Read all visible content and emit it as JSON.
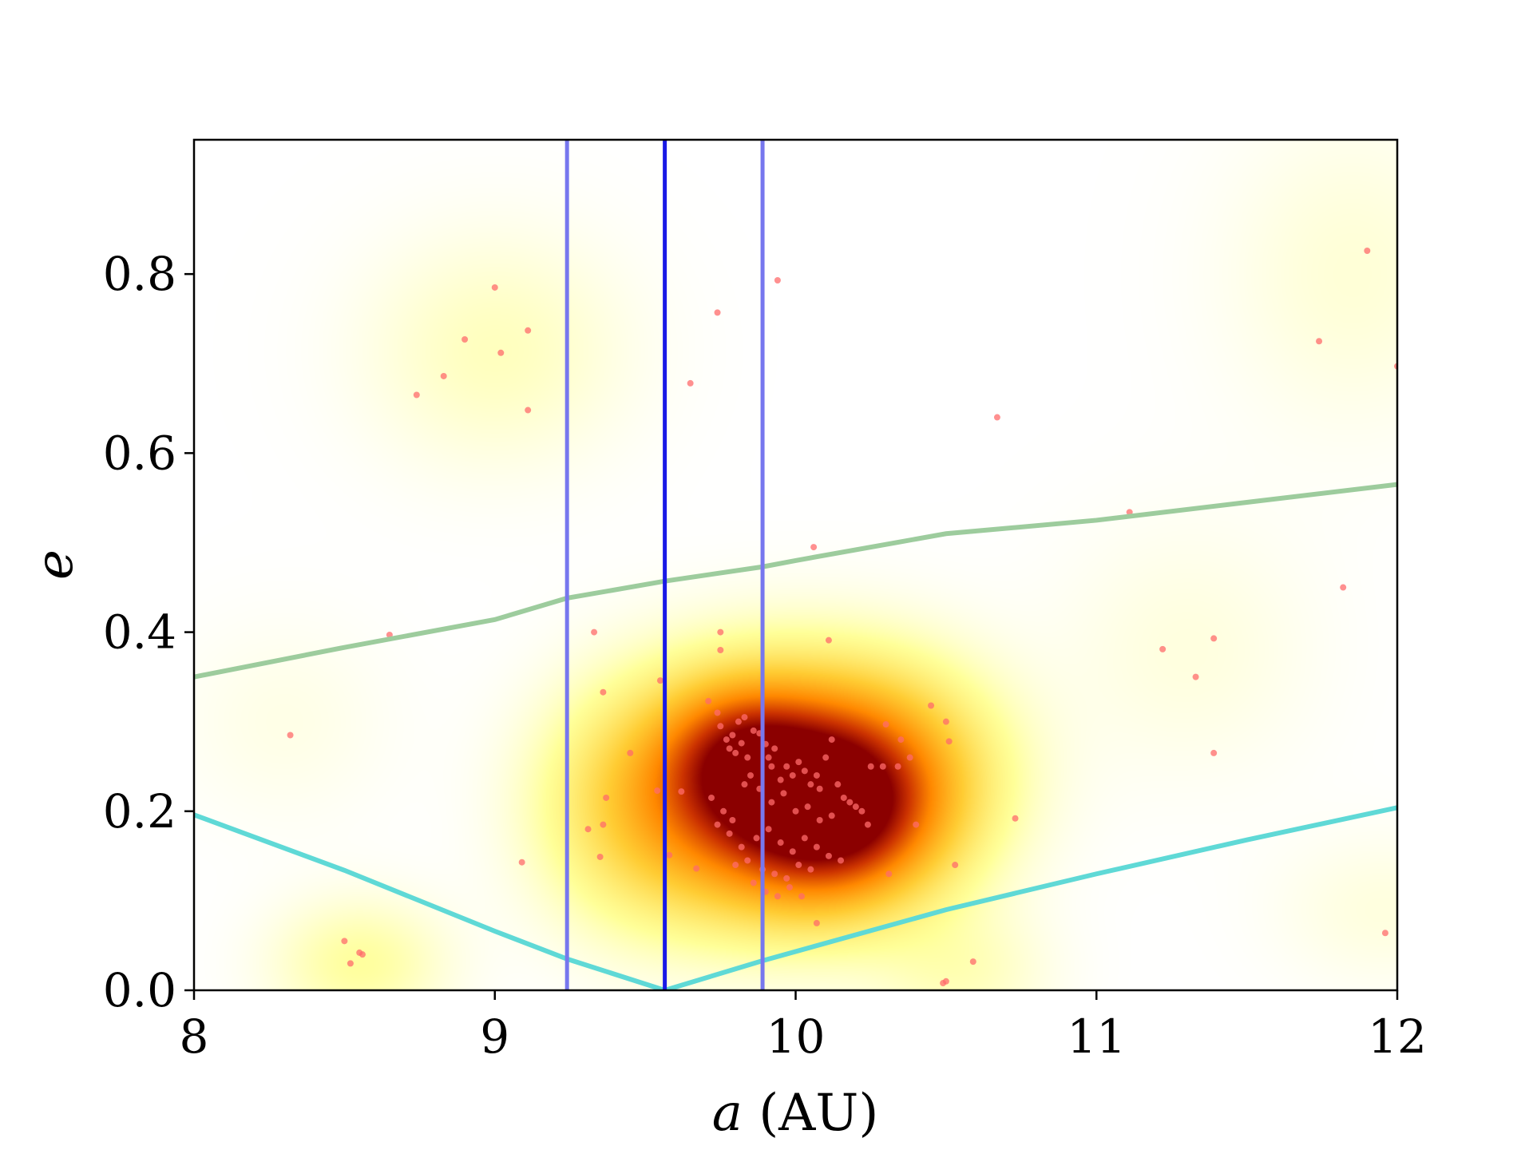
{
  "chart_data": {
    "type": "scatter",
    "xlabel_var": "a",
    "xlabel_unit": "(AU)",
    "ylabel": "e",
    "xlim": [
      8,
      12
    ],
    "ylim": [
      0,
      0.95
    ],
    "xticks": [
      8,
      9,
      10,
      11,
      12
    ],
    "xtick_labels": [
      "8",
      "9",
      "10",
      "11",
      "12"
    ],
    "yticks": [
      0.0,
      0.2,
      0.4,
      0.6,
      0.8
    ],
    "ytick_labels": [
      "0.0",
      "0.2",
      "0.4",
      "0.6",
      "0.8"
    ],
    "grid": false,
    "density_colormap": [
      "#ffffff",
      "#ffff99",
      "#ffcc33",
      "#ff8800",
      "#cc3300",
      "#8b0000"
    ],
    "vertical_lines": [
      {
        "x": 9.24,
        "color": "#7777ee",
        "role": "edge"
      },
      {
        "x": 9.565,
        "color": "#1a1ae6",
        "role": "center"
      },
      {
        "x": 9.89,
        "color": "#7777ee",
        "role": "edge"
      }
    ],
    "curves": [
      {
        "color": "#9dcc9d",
        "x": [
          8.0,
          8.5,
          9.0,
          9.24,
          9.565,
          9.89,
          10.0,
          10.5,
          11.0,
          11.5,
          12.0
        ],
        "y": [
          0.35,
          0.383,
          0.414,
          0.438,
          0.457,
          0.473,
          0.48,
          0.51,
          0.525,
          0.545,
          0.565
        ]
      },
      {
        "color": "#5fd9d6",
        "x": [
          8.0,
          8.5,
          9.0,
          9.24,
          9.565
        ],
        "y": [
          0.196,
          0.134,
          0.066,
          0.035,
          0.0
        ]
      },
      {
        "color": "#5fd9d6",
        "x": [
          9.565,
          9.89,
          10.5,
          11.0,
          11.5,
          12.0
        ],
        "y": [
          0.0,
          0.033,
          0.09,
          0.13,
          0.168,
          0.204
        ]
      }
    ],
    "points": {
      "color": "#ff6b6b",
      "x": [
        9.0,
        9.11,
        8.9,
        9.02,
        8.83,
        8.74,
        9.11,
        9.74,
        9.65,
        9.94,
        10.67,
        11.9,
        11.74,
        12.0,
        10.06,
        11.11,
        11.82,
        8.65,
        9.33,
        9.75,
        9.75,
        10.11,
        11.22,
        11.39,
        11.33,
        8.32,
        9.36,
        9.55,
        9.45,
        9.37,
        9.54,
        9.62,
        9.31,
        9.36,
        9.35,
        9.09,
        9.58,
        9.67,
        9.71,
        9.74,
        9.75,
        9.77,
        9.78,
        9.79,
        9.8,
        9.81,
        9.82,
        9.83,
        9.84,
        9.86,
        9.88,
        9.9,
        9.91,
        9.92,
        9.93,
        9.95,
        9.97,
        9.99,
        10.01,
        10.03,
        10.05,
        10.07,
        10.08,
        10.1,
        10.12,
        10.14,
        10.16,
        10.2,
        10.25,
        10.3,
        10.35,
        10.38,
        9.72,
        9.76,
        9.79,
        9.83,
        9.85,
        9.88,
        9.92,
        9.96,
        10.0,
        10.04,
        10.08,
        10.12,
        10.18,
        10.22,
        9.74,
        9.78,
        9.82,
        9.87,
        9.91,
        9.95,
        9.99,
        10.03,
        10.07,
        10.11,
        10.15,
        9.8,
        9.84,
        9.89,
        9.93,
        9.97,
        10.01,
        10.05,
        9.86,
        9.9,
        9.94,
        9.98,
        10.02,
        10.4,
        10.45,
        10.5,
        10.51,
        10.34,
        10.29,
        10.31,
        10.07,
        10.24,
        10.53,
        10.59,
        10.5,
        10.49,
        10.73,
        11.39,
        11.96,
        8.5,
        8.52,
        8.55,
        8.56
      ],
      "y": [
        0.785,
        0.737,
        0.727,
        0.712,
        0.686,
        0.665,
        0.648,
        0.757,
        0.678,
        0.793,
        0.64,
        0.826,
        0.725,
        0.697,
        0.495,
        0.534,
        0.45,
        0.397,
        0.4,
        0.4,
        0.38,
        0.391,
        0.381,
        0.393,
        0.35,
        0.285,
        0.333,
        0.346,
        0.265,
        0.215,
        0.223,
        0.222,
        0.18,
        0.185,
        0.149,
        0.143,
        0.151,
        0.136,
        0.323,
        0.31,
        0.295,
        0.28,
        0.27,
        0.285,
        0.265,
        0.3,
        0.276,
        0.305,
        0.26,
        0.29,
        0.287,
        0.275,
        0.26,
        0.25,
        0.27,
        0.235,
        0.25,
        0.24,
        0.255,
        0.245,
        0.23,
        0.24,
        0.225,
        0.26,
        0.28,
        0.23,
        0.215,
        0.205,
        0.25,
        0.297,
        0.28,
        0.26,
        0.215,
        0.2,
        0.19,
        0.23,
        0.24,
        0.225,
        0.21,
        0.22,
        0.2,
        0.205,
        0.19,
        0.195,
        0.21,
        0.2,
        0.185,
        0.175,
        0.16,
        0.17,
        0.18,
        0.165,
        0.155,
        0.17,
        0.16,
        0.15,
        0.145,
        0.14,
        0.145,
        0.135,
        0.13,
        0.125,
        0.14,
        0.135,
        0.12,
        0.11,
        0.105,
        0.115,
        0.105,
        0.185,
        0.318,
        0.3,
        0.278,
        0.25,
        0.25,
        0.13,
        0.075,
        0.185,
        0.14,
        0.032,
        0.01,
        0.008,
        0.192,
        0.265,
        0.064,
        0.055,
        0.03,
        0.042,
        0.04
      ]
    },
    "density_blobs": [
      {
        "x": 9.95,
        "y": 0.22,
        "sx": 0.33,
        "sy": 0.085,
        "w": 1.0
      },
      {
        "x": 10.13,
        "y": 0.2,
        "sx": 0.2,
        "sy": 0.06,
        "w": 0.55
      },
      {
        "x": 9.82,
        "y": 0.265,
        "sx": 0.16,
        "sy": 0.05,
        "w": 0.35
      },
      {
        "x": 10.33,
        "y": 0.25,
        "sx": 0.25,
        "sy": 0.08,
        "w": 0.2
      },
      {
        "x": 9.45,
        "y": 0.2,
        "sx": 0.22,
        "sy": 0.09,
        "w": 0.15
      },
      {
        "x": 9.0,
        "y": 0.715,
        "sx": 0.3,
        "sy": 0.09,
        "w": 0.08
      },
      {
        "x": 8.55,
        "y": 0.03,
        "sx": 0.2,
        "sy": 0.05,
        "w": 0.12
      },
      {
        "x": 10.55,
        "y": 0.02,
        "sx": 0.2,
        "sy": 0.05,
        "w": 0.08
      },
      {
        "x": 11.85,
        "y": 0.8,
        "sx": 0.3,
        "sy": 0.12,
        "w": 0.05
      },
      {
        "x": 11.3,
        "y": 0.38,
        "sx": 0.3,
        "sy": 0.1,
        "w": 0.04
      },
      {
        "x": 11.95,
        "y": 0.09,
        "sx": 0.25,
        "sy": 0.06,
        "w": 0.04
      },
      {
        "x": 8.3,
        "y": 0.3,
        "sx": 0.25,
        "sy": 0.08,
        "w": 0.03
      }
    ]
  }
}
